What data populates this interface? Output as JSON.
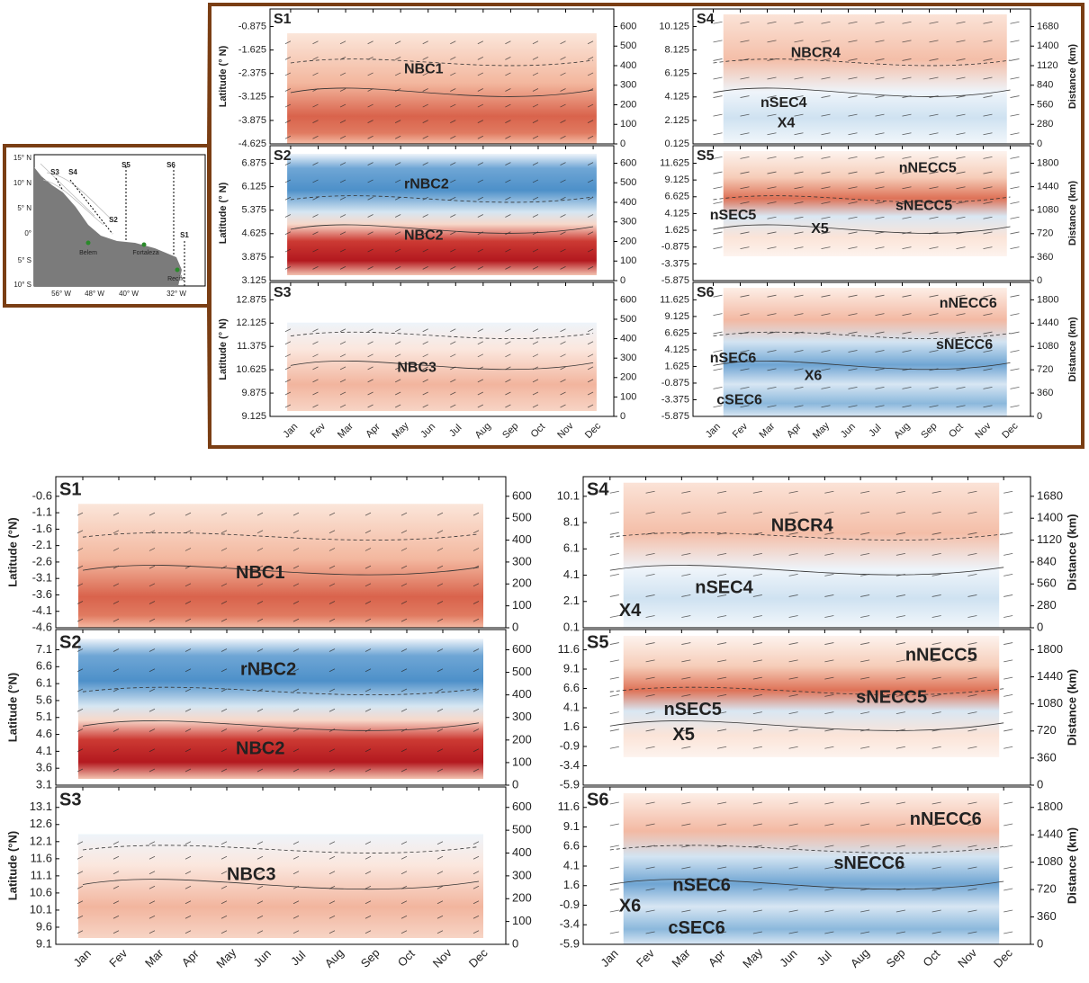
{
  "map": {
    "lat_labels": [
      "15° N",
      "10° N",
      "5° N",
      "0°",
      "5° S",
      "10° S"
    ],
    "lon_labels": [
      "56° W",
      "48° W",
      "40° W",
      "32° W"
    ],
    "sections": [
      "S3",
      "S4",
      "S5",
      "S6",
      "S2",
      "S1"
    ],
    "cities": [
      "Belem",
      "Fortaleza",
      "Recife"
    ]
  },
  "months": [
    "Jan",
    "Fev",
    "Mar",
    "Apr",
    "May",
    "Jun",
    "Jul",
    "Aug",
    "Sep",
    "Oct",
    "Nov",
    "Dec"
  ],
  "top": {
    "y_axis_label": "Latitude (° N)",
    "distance_label": "Distance (km)",
    "panels": [
      {
        "label": "S1",
        "lat_ticks": [
          -0.875,
          -1.625,
          -2.375,
          -3.125,
          -3.875,
          -4.625
        ],
        "dist_ticks": [
          600,
          500,
          400,
          300,
          200,
          100,
          0
        ],
        "currents": [
          "NBC1"
        ]
      },
      {
        "label": "S2",
        "lat_ticks": [
          6.875,
          6.125,
          5.375,
          4.625,
          3.875,
          3.125
        ],
        "dist_ticks": [
          600,
          500,
          400,
          300,
          200,
          100,
          0
        ],
        "currents": [
          "rNBC2",
          "NBC2"
        ]
      },
      {
        "label": "S3",
        "lat_ticks": [
          12.875,
          12.125,
          11.375,
          10.625,
          9.875,
          9.125
        ],
        "dist_ticks": [
          600,
          500,
          400,
          300,
          200,
          100,
          0
        ],
        "currents": [
          "NBC3"
        ]
      },
      {
        "label": "S4",
        "lat_ticks": [
          10.125,
          8.125,
          6.125,
          4.125,
          2.125,
          0.125
        ],
        "dist_ticks": [
          1680,
          1400,
          1120,
          840,
          560,
          280,
          0
        ],
        "currents": [
          "NBCR4",
          "nSEC4",
          "X4"
        ]
      },
      {
        "label": "S5",
        "lat_ticks": [
          11.625,
          9.125,
          6.625,
          4.125,
          1.625,
          -0.875,
          -3.375,
          -5.875
        ],
        "dist_ticks": [
          1800,
          1440,
          1080,
          720,
          360,
          0
        ],
        "currents": [
          "nNECC5",
          "nSEC5",
          "sNECC5",
          "X5"
        ]
      },
      {
        "label": "S6",
        "lat_ticks": [
          11.625,
          9.125,
          6.625,
          4.125,
          1.625,
          -0.875,
          -3.375,
          -5.875
        ],
        "dist_ticks": [
          1800,
          1440,
          1080,
          720,
          360,
          0
        ],
        "currents": [
          "nNECC6",
          "sNECC6",
          "nSEC6",
          "X6",
          "cSEC6"
        ]
      }
    ]
  },
  "bottom": {
    "y_axis_label": "Latitude (°N)",
    "distance_label": "Distance (km)",
    "panels": [
      {
        "label": "S1",
        "lat_ticks": [
          -0.6,
          -1.1,
          -1.6,
          -2.1,
          -2.6,
          -3.1,
          -3.6,
          -4.1,
          -4.6
        ],
        "dist_ticks": [
          600,
          500,
          400,
          300,
          200,
          100,
          0
        ],
        "currents": [
          "NBC1"
        ]
      },
      {
        "label": "S2",
        "lat_ticks": [
          7.1,
          6.6,
          6.1,
          5.6,
          5.1,
          4.6,
          4.1,
          3.6,
          3.1
        ],
        "dist_ticks": [
          600,
          500,
          400,
          300,
          200,
          100,
          0
        ],
        "currents": [
          "rNBC2",
          "NBC2"
        ]
      },
      {
        "label": "S3",
        "lat_ticks": [
          13.1,
          12.6,
          12.1,
          11.6,
          11.1,
          10.6,
          10.1,
          9.6,
          9.1
        ],
        "dist_ticks": [
          600,
          500,
          400,
          300,
          200,
          100,
          0
        ],
        "currents": [
          "NBC3"
        ]
      },
      {
        "label": "S4",
        "lat_ticks": [
          10.1,
          8.1,
          6.1,
          4.1,
          2.1,
          0.1
        ],
        "dist_ticks": [
          1680,
          1400,
          1120,
          840,
          560,
          280,
          0
        ],
        "currents": [
          "NBCR4",
          "nSEC4",
          "X4"
        ]
      },
      {
        "label": "S5",
        "lat_ticks": [
          11.6,
          9.1,
          6.6,
          4.1,
          1.6,
          -0.9,
          -3.4,
          -5.9
        ],
        "dist_ticks": [
          1800,
          1440,
          1080,
          720,
          360,
          0
        ],
        "currents": [
          "nNECC5",
          "nSEC5",
          "sNECC5",
          "X5"
        ]
      },
      {
        "label": "S6",
        "lat_ticks": [
          11.6,
          9.1,
          6.6,
          4.1,
          1.6,
          -0.9,
          -3.4,
          -5.9
        ],
        "dist_ticks": [
          1800,
          1440,
          1080,
          720,
          360,
          0
        ],
        "currents": [
          "nNECC6",
          "sNECC6",
          "nSEC6",
          "X6",
          "cSEC6"
        ]
      }
    ]
  }
}
